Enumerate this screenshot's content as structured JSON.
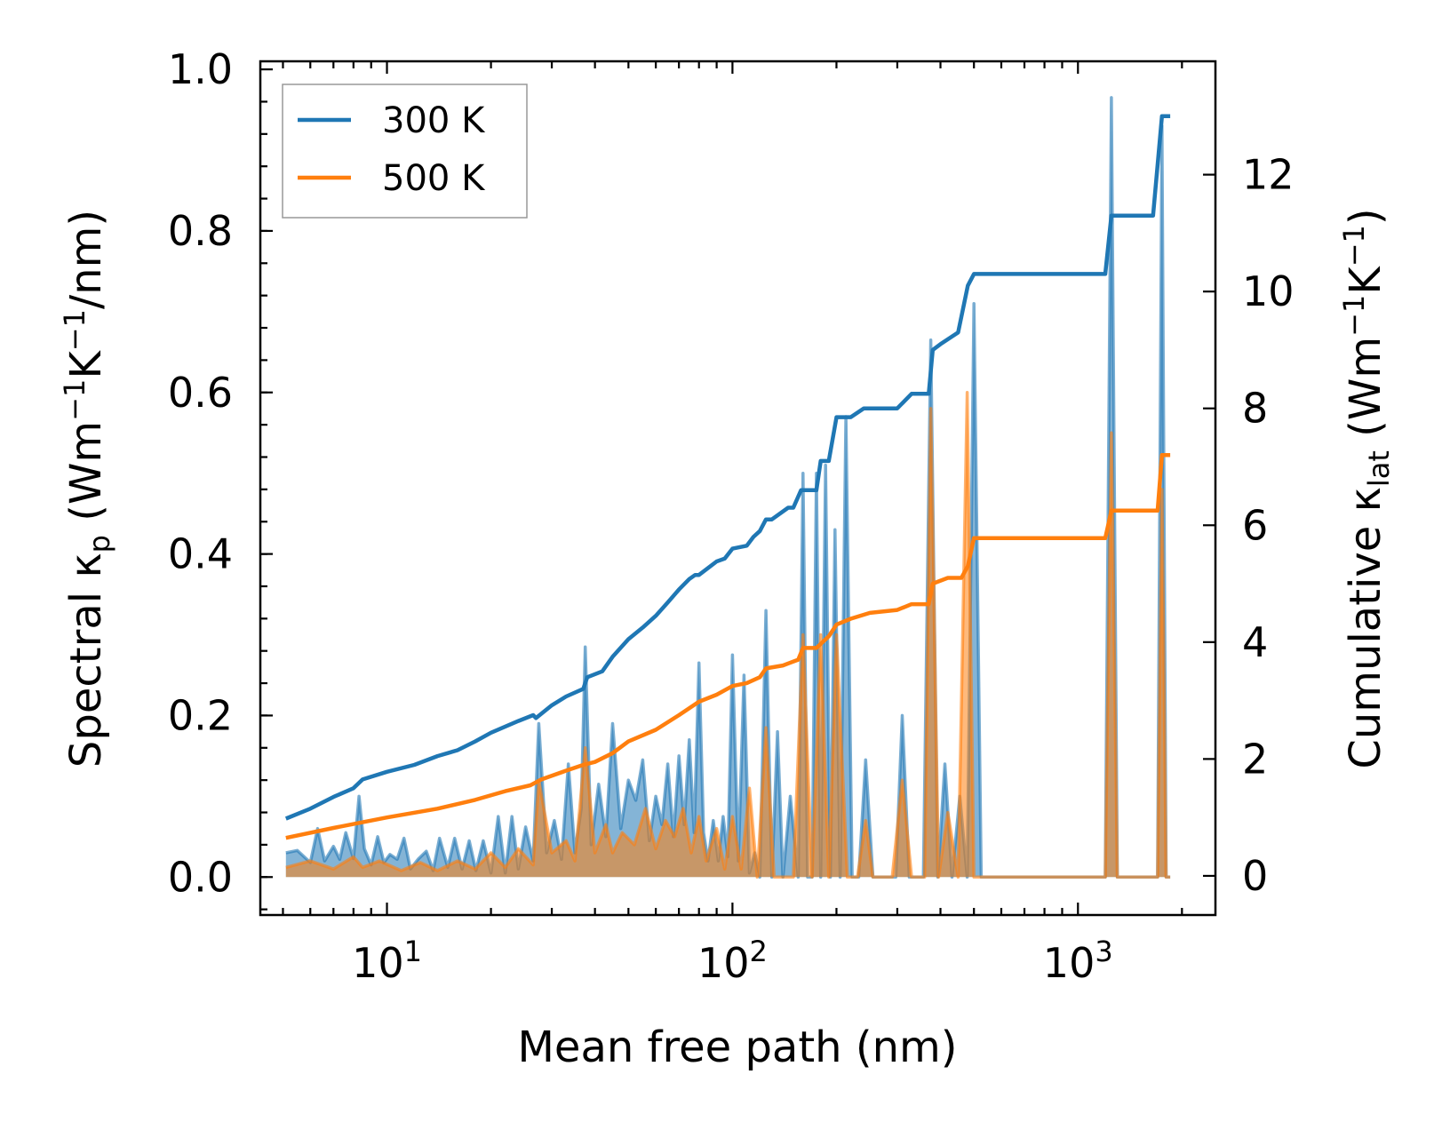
{
  "chart_data": {
    "type": "line",
    "xscale": "log",
    "xlabel": "Mean free path (nm)",
    "ylabel_left": {
      "main": "Spectral κ",
      "sub": "p",
      "unit_a": " (Wm",
      "sup1": "−1",
      "unit_b": "K",
      "sup2": "−1",
      "unit_c": "/nm)"
    },
    "ylabel_right": {
      "main": "Cumulative κ",
      "sub": "lat",
      "unit_a": " (Wm",
      "sup1": "−1",
      "unit_b": "K",
      "sup2": "−1",
      "unit_c": ")"
    },
    "xlim": [
      4.3,
      2500
    ],
    "ylim_left": [
      -0.047,
      1.01
    ],
    "ylim_right": [
      -0.67,
      13.94
    ],
    "x_ticks": [
      {
        "value": 10,
        "base": "10",
        "exp": "1"
      },
      {
        "value": 100,
        "base": "10",
        "exp": "2"
      },
      {
        "value": 1000,
        "base": "10",
        "exp": "3"
      }
    ],
    "y_ticks_left": [
      {
        "value": 0.0,
        "label": "0.0"
      },
      {
        "value": 0.2,
        "label": "0.2"
      },
      {
        "value": 0.4,
        "label": "0.4"
      },
      {
        "value": 0.6,
        "label": "0.6"
      },
      {
        "value": 0.8,
        "label": "0.8"
      },
      {
        "value": 1.0,
        "label": "1.0"
      }
    ],
    "y_ticks_right": [
      {
        "value": 0,
        "label": "0"
      },
      {
        "value": 2,
        "label": "2"
      },
      {
        "value": 4,
        "label": "4"
      },
      {
        "value": 6,
        "label": "6"
      },
      {
        "value": 8,
        "label": "8"
      },
      {
        "value": 10,
        "label": "10"
      },
      {
        "value": 12,
        "label": "12"
      }
    ],
    "legend": {
      "position": "upper-left",
      "entries": [
        {
          "label": "300 K",
          "color": "#1f77b4"
        },
        {
          "label": "500 K",
          "color": "#ff7f0e"
        }
      ]
    },
    "series": [
      {
        "name": "300 K",
        "color": "#1f77b4",
        "cumulative": {
          "x": [
            5.1,
            6.0,
            7.0,
            8.0,
            8.5,
            10.0,
            12.0,
            14.0,
            16.0,
            18.0,
            20.0,
            24.0,
            26.5,
            27.0,
            30.0,
            33.0,
            37.0,
            38.0,
            42.0,
            45.0,
            50.0,
            55.0,
            60.0,
            65.0,
            70.0,
            75.0,
            78.0,
            80.0,
            90.0,
            95.0,
            100.0,
            110.0,
            115.0,
            120.0,
            125.0,
            130.0,
            145.0,
            150.0,
            158.0,
            160.0,
            175.0,
            180.0,
            190.0,
            200.0,
            220.0,
            240.0,
            300.0,
            330.0,
            370.0,
            380.0,
            400.0,
            450.0,
            480.0,
            500.0,
            1200.0,
            1250.0,
            1650.0,
            1750.0,
            1850.0
          ],
          "y": [
            0.98,
            1.15,
            1.35,
            1.5,
            1.65,
            1.78,
            1.9,
            2.05,
            2.15,
            2.3,
            2.45,
            2.65,
            2.75,
            2.7,
            2.92,
            3.07,
            3.2,
            3.4,
            3.5,
            3.75,
            4.05,
            4.25,
            4.45,
            4.68,
            4.9,
            5.08,
            5.15,
            5.15,
            5.38,
            5.43,
            5.6,
            5.65,
            5.8,
            5.9,
            6.1,
            6.1,
            6.3,
            6.3,
            6.6,
            6.6,
            6.6,
            7.1,
            7.1,
            7.85,
            7.85,
            8.0,
            8.0,
            8.25,
            8.25,
            9.0,
            9.1,
            9.3,
            10.1,
            10.3,
            10.3,
            11.3,
            11.3,
            13.0,
            13.0
          ]
        },
        "spectral": {
          "x": [
            5.1,
            5.5,
            6.0,
            6.3,
            6.6,
            7.0,
            7.3,
            7.6,
            8.0,
            8.3,
            8.6,
            9.0,
            9.4,
            9.8,
            10.2,
            10.7,
            11.2,
            11.7,
            12.3,
            13.0,
            13.6,
            14.2,
            15.0,
            15.7,
            16.5,
            17.3,
            18.1,
            19.0,
            20.0,
            21.0,
            22.0,
            23.0,
            24.0,
            25.2,
            26.5,
            27.5,
            29.0,
            30.5,
            32.0,
            33.5,
            35.0,
            36.5,
            37.5,
            39.0,
            41.0,
            43.0,
            45.0,
            47.5,
            50.0,
            52.5,
            55.0,
            57.5,
            60.0,
            62.5,
            65.0,
            67.5,
            70.0,
            72.5,
            75.0,
            77.5,
            80.0,
            82.5,
            85.0,
            88.0,
            91.0,
            94.0,
            97.0,
            100.0,
            104.0,
            108.0,
            112.0,
            116.0,
            120.0,
            125.0,
            130.0,
            135.0,
            140.0,
            147.0,
            155.0,
            160.0,
            165.0,
            170.0,
            175.0,
            180.0,
            186.0,
            192.0,
            198.0,
            205.0,
            213.0,
            222.0,
            232.0,
            243.0,
            255.0,
            268.0,
            282.0,
            297.0,
            310.0,
            325.0,
            340.0,
            357.0,
            375.0,
            393.0,
            412.0,
            432.0,
            455.0,
            478.0,
            500.0,
            525.0,
            1150.0,
            1200.0,
            1250.0,
            1300.0,
            1350.0,
            1650.0,
            1700.0,
            1750.0,
            1800.0,
            1850.0
          ],
          "y": [
            0.03,
            0.033,
            0.018,
            0.06,
            0.02,
            0.038,
            0.022,
            0.055,
            0.023,
            0.1,
            0.035,
            0.015,
            0.05,
            0.018,
            0.028,
            0.022,
            0.048,
            0.01,
            0.022,
            0.032,
            0.008,
            0.048,
            0.012,
            0.048,
            0.01,
            0.045,
            0.008,
            0.045,
            0.005,
            0.075,
            0.005,
            0.075,
            0.01,
            0.062,
            0.02,
            0.19,
            0.03,
            0.07,
            0.022,
            0.14,
            0.03,
            0.085,
            0.285,
            0.04,
            0.115,
            0.05,
            0.19,
            0.06,
            0.12,
            0.095,
            0.145,
            0.045,
            0.1,
            0.065,
            0.14,
            0.05,
            0.15,
            0.065,
            0.17,
            0.055,
            0.265,
            0.055,
            0.02,
            0.07,
            0.02,
            0.075,
            0.025,
            0.275,
            0.02,
            0.25,
            0.005,
            0.03,
            0.0,
            0.33,
            0.0,
            0.18,
            0.0,
            0.1,
            0.0,
            0.5,
            0.0,
            0.0,
            0.5,
            0.0,
            0.51,
            0.0,
            0.43,
            0.0,
            0.57,
            0.0,
            0.0,
            0.145,
            0.0,
            0.0,
            0.0,
            0.0,
            0.2,
            0.0,
            0.0,
            0.0,
            0.665,
            0.0,
            0.14,
            0.0,
            0.1,
            0.0,
            0.71,
            0.0,
            0.0,
            0.0,
            0.965,
            0.0,
            0.0,
            0.0,
            0.0,
            0.93,
            0.0,
            0.0
          ]
        }
      },
      {
        "name": "500 K",
        "color": "#ff7f0e",
        "cumulative": {
          "x": [
            5.1,
            7.0,
            10.0,
            14.0,
            18.0,
            22.0,
            26.0,
            28.0,
            33.0,
            37.0,
            40.0,
            45.0,
            50.0,
            60.0,
            70.0,
            80.0,
            90.0,
            100.0,
            110.0,
            120.0,
            125.0,
            140.0,
            155.0,
            160.0,
            175.0,
            190.0,
            200.0,
            220.0,
            250.0,
            300.0,
            330.0,
            370.0,
            380.0,
            420.0,
            460.0,
            480.0,
            500.0,
            1200.0,
            1250.0,
            1700.0,
            1750.0,
            1850.0
          ],
          "y": [
            0.65,
            0.82,
            1.0,
            1.15,
            1.3,
            1.45,
            1.55,
            1.65,
            1.8,
            1.9,
            1.95,
            2.1,
            2.3,
            2.5,
            2.75,
            2.98,
            3.1,
            3.25,
            3.3,
            3.4,
            3.55,
            3.6,
            3.7,
            3.9,
            3.9,
            4.1,
            4.3,
            4.4,
            4.5,
            4.55,
            4.65,
            4.65,
            5.0,
            5.1,
            5.1,
            5.3,
            5.78,
            5.78,
            6.25,
            6.25,
            7.2,
            7.2
          ]
        },
        "spectral": {
          "x": [
            5.1,
            6.0,
            7.0,
            8.0,
            8.5,
            9.5,
            11.0,
            12.5,
            14.0,
            16.0,
            18.0,
            20.0,
            22.0,
            24.0,
            26.5,
            27.5,
            30.0,
            33.0,
            35.0,
            37.5,
            40.0,
            43.0,
            45.0,
            48.0,
            52.0,
            56.0,
            60.0,
            64.0,
            68.0,
            72.0,
            76.0,
            80.0,
            84.0,
            90.0,
            95.0,
            100.0,
            106.0,
            112.0,
            118.0,
            125.0,
            132.0,
            140.0,
            150.0,
            160.0,
            170.0,
            180.0,
            190.0,
            200.0,
            215.0,
            230.0,
            243.0,
            255.0,
            290.0,
            310.0,
            330.0,
            360.0,
            375.0,
            395.0,
            420.0,
            450.0,
            478.0,
            500.0,
            1150.0,
            1200.0,
            1250.0,
            1300.0,
            1650.0,
            1700.0,
            1750.0,
            1800.0,
            1850.0
          ],
          "y": [
            0.012,
            0.02,
            0.01,
            0.025,
            0.012,
            0.02,
            0.008,
            0.018,
            0.008,
            0.02,
            0.01,
            0.03,
            0.012,
            0.035,
            0.015,
            0.12,
            0.03,
            0.045,
            0.02,
            0.16,
            0.03,
            0.065,
            0.03,
            0.055,
            0.04,
            0.085,
            0.035,
            0.07,
            0.05,
            0.085,
            0.03,
            0.075,
            0.02,
            0.06,
            0.01,
            0.075,
            0.01,
            0.11,
            0.0,
            0.185,
            0.0,
            0.0,
            0.0,
            0.3,
            0.0,
            0.3,
            0.0,
            0.3,
            0.0,
            0.0,
            0.07,
            0.0,
            0.0,
            0.12,
            0.0,
            0.0,
            0.58,
            0.0,
            0.08,
            0.0,
            0.6,
            0.0,
            0.0,
            0.0,
            0.55,
            0.0,
            0.0,
            0.0,
            0.48,
            0.0,
            0.0
          ]
        }
      }
    ]
  }
}
